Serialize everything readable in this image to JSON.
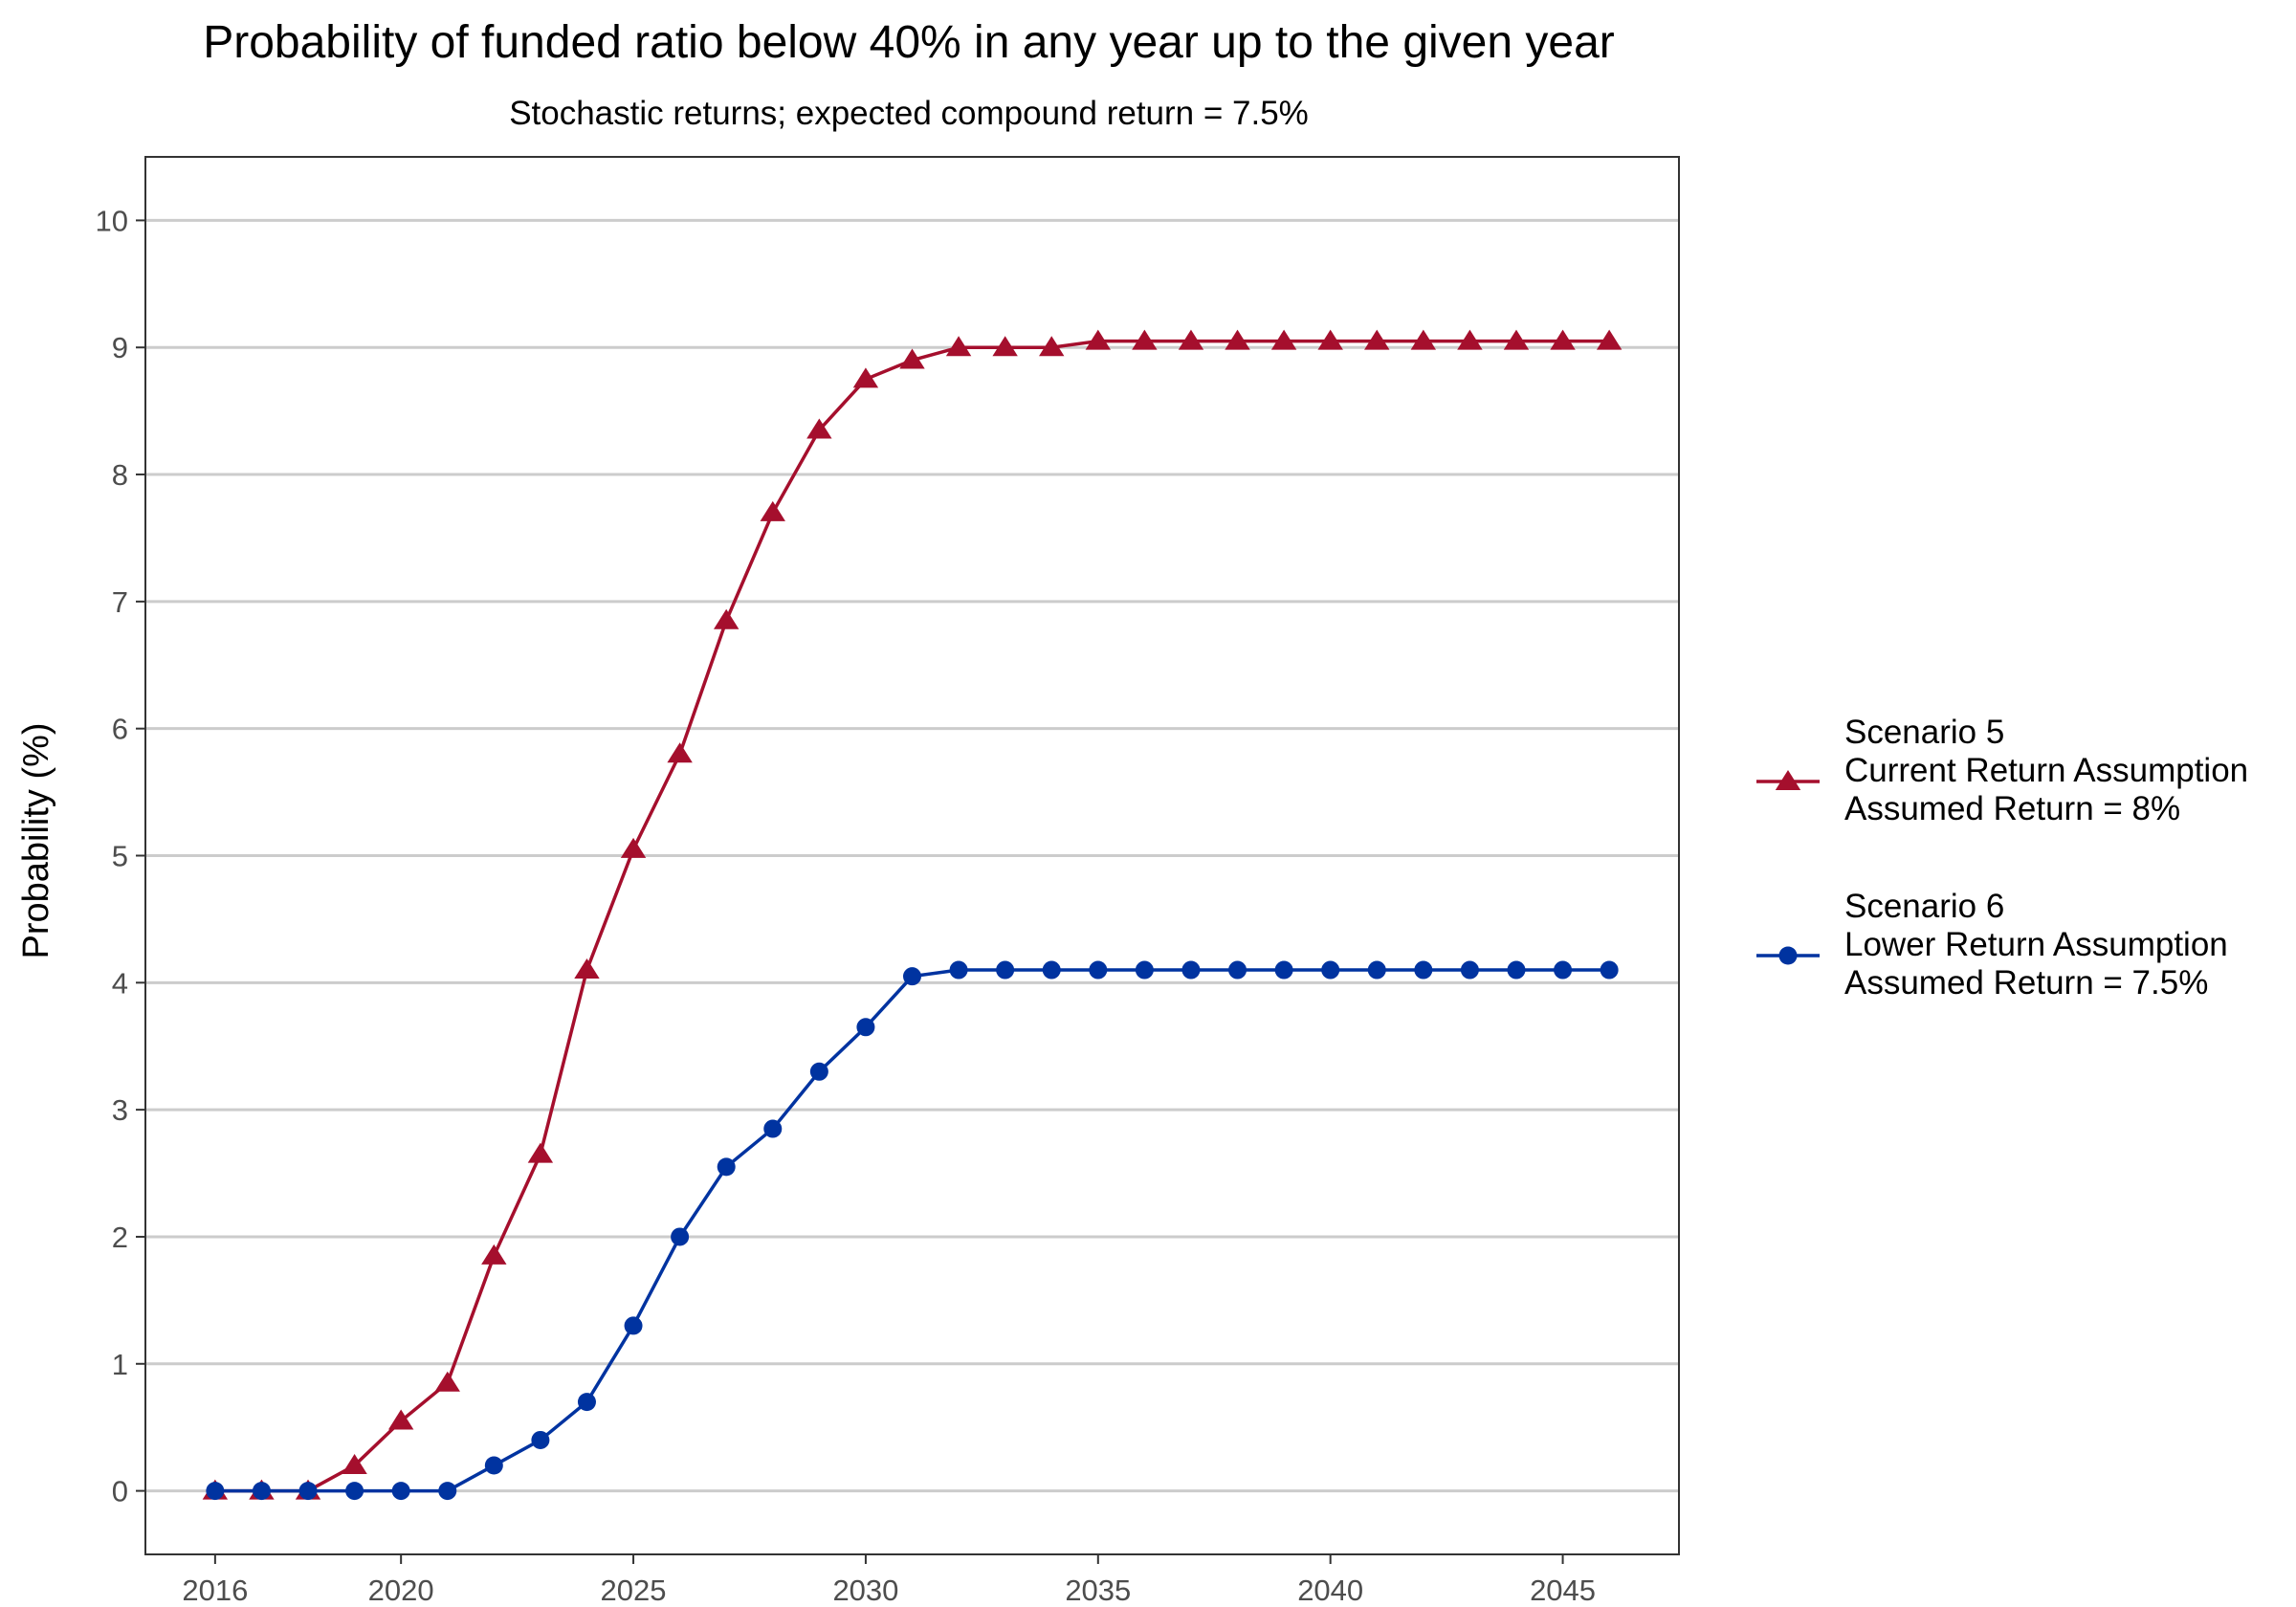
{
  "chart_data": {
    "type": "line",
    "title": "Probability of funded ratio below 40% in any year up to the given year",
    "subtitle": "Stochastic returns; expected compound return = 7.5%",
    "xlabel": "",
    "ylabel": "Probability (%)",
    "xlim": [
      2014.5,
      2047.5
    ],
    "ylim": [
      -0.5,
      10.5
    ],
    "x_ticks": [
      2016,
      2020,
      2025,
      2030,
      2035,
      2040,
      2045
    ],
    "y_ticks": [
      0,
      1,
      2,
      3,
      4,
      5,
      6,
      7,
      8,
      9,
      10
    ],
    "grid": "horizontal major lines",
    "legend_position": "right",
    "x": [
      2016,
      2017,
      2018,
      2019,
      2020,
      2021,
      2022,
      2023,
      2024,
      2025,
      2026,
      2027,
      2028,
      2029,
      2030,
      2031,
      2032,
      2033,
      2034,
      2035,
      2036,
      2037,
      2038,
      2039,
      2040,
      2041,
      2042,
      2043,
      2044,
      2045,
      2046
    ],
    "series": [
      {
        "name_lines": [
          "Scenario 5",
          "Current Return Assumption",
          "Assumed Return = 8%"
        ],
        "color": "#a50f2d",
        "marker": "triangle",
        "values": [
          0,
          0,
          0,
          0.2,
          0.55,
          0.85,
          1.85,
          2.65,
          4.1,
          5.05,
          5.8,
          6.85,
          7.7,
          8.35,
          8.75,
          8.9,
          9.0,
          9.0,
          9.0,
          9.05,
          9.05,
          9.05,
          9.05,
          9.05,
          9.05,
          9.05,
          9.05,
          9.05,
          9.05,
          9.05,
          9.05
        ]
      },
      {
        "name_lines": [
          "Scenario 6",
          "Lower Return Assumption",
          "Assumed Return = 7.5%"
        ],
        "color": "#0033a0",
        "marker": "circle",
        "values": [
          0,
          0,
          0,
          0,
          0,
          0,
          0.2,
          0.4,
          0.7,
          1.3,
          2.0,
          2.55,
          2.85,
          3.3,
          3.65,
          4.05,
          4.1,
          4.1,
          4.1,
          4.1,
          4.1,
          4.1,
          4.1,
          4.1,
          4.1,
          4.1,
          4.1,
          4.1,
          4.1,
          4.1,
          4.1
        ]
      }
    ]
  }
}
